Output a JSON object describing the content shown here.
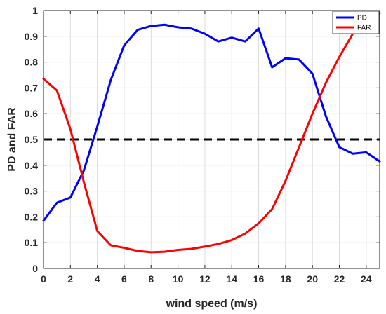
{
  "chart_data": {
    "type": "line",
    "xlabel": "wind speed (m/s)",
    "ylabel": "PD and FAR",
    "xlim": [
      0,
      25
    ],
    "ylim": [
      0,
      1
    ],
    "xticks": [
      0,
      2,
      4,
      6,
      8,
      10,
      12,
      14,
      16,
      18,
      20,
      22,
      24
    ],
    "yticks": [
      0,
      0.1,
      0.2,
      0.3,
      0.4,
      0.5,
      0.6,
      0.7,
      0.8,
      0.9,
      1
    ],
    "xtick_labels": [
      "0",
      "2",
      "4",
      "6",
      "8",
      "10",
      "12",
      "14",
      "16",
      "18",
      "20",
      "22",
      "24"
    ],
    "ytick_labels": [
      "0",
      "0.1",
      "0.2",
      "0.3",
      "0.4",
      "0.5",
      "0.6",
      "0.7",
      "0.8",
      "0.9",
      "1"
    ],
    "grid": true,
    "legend_position": "top-right",
    "x": [
      0,
      1,
      2,
      3,
      4,
      5,
      6,
      7,
      8,
      9,
      10,
      11,
      12,
      13,
      14,
      15,
      16,
      17,
      18,
      19,
      20,
      21,
      22,
      23,
      24,
      25
    ],
    "series": [
      {
        "name": "PD",
        "color": "#0000ff",
        "values": [
          0.185,
          0.255,
          0.275,
          0.38,
          0.55,
          0.73,
          0.865,
          0.925,
          0.94,
          0.945,
          0.935,
          0.93,
          0.91,
          0.88,
          0.895,
          0.88,
          0.93,
          0.78,
          0.815,
          0.81,
          0.755,
          0.59,
          0.47,
          0.445,
          0.45,
          0.415
        ]
      },
      {
        "name": "FAR",
        "color": "#ff0000",
        "values": [
          0.735,
          0.69,
          0.54,
          0.335,
          0.145,
          0.09,
          0.08,
          0.068,
          0.063,
          0.065,
          0.072,
          0.076,
          0.085,
          0.095,
          0.11,
          0.135,
          0.175,
          0.23,
          0.34,
          0.47,
          0.6,
          0.72,
          0.82,
          0.91,
          0.97,
          0.99
        ]
      }
    ],
    "reference_line": {
      "y": 0.5,
      "style": "dashed",
      "color": "#000000"
    }
  }
}
